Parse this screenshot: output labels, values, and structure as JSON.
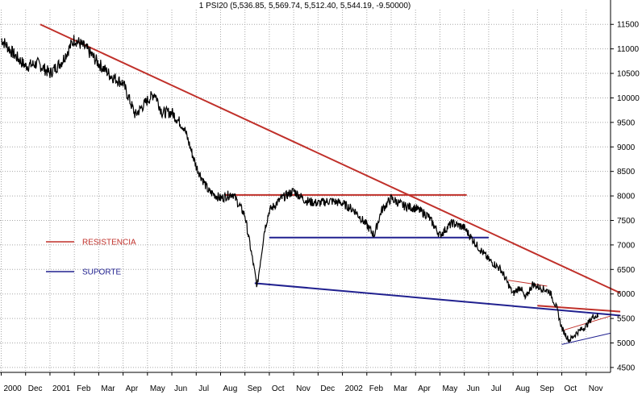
{
  "chart_data": {
    "type": "line",
    "title": "1 PSI20 (5,536.85, 5,569.74, 5,512.40, 5,544.19, -9.50000)",
    "ylim": [
      4400,
      11800
    ],
    "y_ticks": [
      4500,
      5000,
      5500,
      6000,
      6500,
      7000,
      7500,
      8000,
      8500,
      9000,
      9500,
      10000,
      10500,
      11000,
      11500
    ],
    "x_tick_labels": [
      "2000",
      "Dec",
      "2001",
      "Feb",
      "Mar",
      "Apr",
      "May",
      "Jun",
      "Jul",
      "Aug",
      "Sep",
      "Oct",
      "Nov",
      "Dec",
      "2002",
      "Feb",
      "Mar",
      "Apr",
      "May",
      "Jun",
      "Jul",
      "Aug",
      "Sep",
      "Oct",
      "Nov"
    ],
    "grid": true,
    "colors": {
      "price": "#000000",
      "resistance": "#c0302a",
      "support": "#20208f",
      "background": "#ffffff",
      "grid": "#a8a8a8"
    },
    "legend": {
      "placement": "left-middle",
      "items": [
        {
          "name": "RESISTENCIA",
          "color": "#c0302a"
        },
        {
          "name": "SUPORTE",
          "color": "#20208f"
        }
      ]
    },
    "series": [
      {
        "values": [
          [
            0,
            11200
          ],
          [
            0.5,
            10900
          ],
          [
            1,
            10650
          ],
          [
            1.5,
            10700
          ],
          [
            2,
            10500
          ],
          [
            2.5,
            10750
          ],
          [
            3,
            11200
          ],
          [
            3.5,
            11000
          ],
          [
            4,
            10700
          ],
          [
            4.5,
            10450
          ],
          [
            5,
            10300
          ],
          [
            5.5,
            9650
          ],
          [
            6,
            9950
          ],
          [
            6.3,
            10100
          ],
          [
            6.6,
            9700
          ],
          [
            7,
            9700
          ],
          [
            7.5,
            9400
          ],
          [
            8,
            8600
          ],
          [
            8.5,
            8100
          ],
          [
            9,
            7950
          ],
          [
            9.5,
            8050
          ],
          [
            10,
            7600
          ],
          [
            10.5,
            6150
          ],
          [
            10.8,
            7300
          ],
          [
            11,
            7700
          ],
          [
            11.5,
            7950
          ],
          [
            12,
            8100
          ],
          [
            12.5,
            7900
          ],
          [
            13,
            7850
          ],
          [
            13.5,
            7900
          ],
          [
            14,
            7850
          ],
          [
            14.5,
            7700
          ],
          [
            15,
            7400
          ],
          [
            15.3,
            7200
          ],
          [
            15.6,
            7700
          ],
          [
            16,
            7950
          ],
          [
            16.5,
            7800
          ],
          [
            17,
            7750
          ],
          [
            17.5,
            7600
          ],
          [
            18,
            7200
          ],
          [
            18.5,
            7450
          ],
          [
            19,
            7350
          ],
          [
            19.5,
            7000
          ],
          [
            20,
            6700
          ],
          [
            20.5,
            6500
          ],
          [
            21,
            6000
          ],
          [
            21.3,
            6150
          ],
          [
            21.5,
            5900
          ],
          [
            21.8,
            6200
          ],
          [
            22,
            6150
          ],
          [
            22.5,
            6050
          ],
          [
            22.8,
            5700
          ],
          [
            23,
            5300
          ],
          [
            23.3,
            5050
          ],
          [
            23.6,
            5200
          ],
          [
            24,
            5350
          ],
          [
            24.3,
            5550
          ],
          [
            24.5,
            5550
          ]
        ]
      }
    ],
    "trendlines": [
      {
        "series": "RESISTENCIA",
        "role": "main resistance",
        "from": [
          1.6,
          11500
        ],
        "to": [
          25.4,
          6020
        ]
      },
      {
        "series": "RESISTENCIA",
        "role": "range top",
        "from": [
          9.2,
          8020
        ],
        "to": [
          19.1,
          8020
        ]
      },
      {
        "series": "RESISTENCIA",
        "role": "lower resistance",
        "from": [
          22.0,
          5760
        ],
        "to": [
          25.4,
          5640
        ]
      },
      {
        "series": "RESISTENCIA",
        "role": "short flag",
        "from": [
          20.8,
          6280
        ],
        "to": [
          22.4,
          6160
        ]
      },
      {
        "series": "RESISTENCIA",
        "role": "channel top",
        "from": [
          23.0,
          5250
        ],
        "to": [
          25.0,
          5550
        ]
      },
      {
        "series": "SUPORTE",
        "role": "range bottom",
        "from": [
          11.0,
          7150
        ],
        "to": [
          20.0,
          7150
        ]
      },
      {
        "series": "SUPORTE",
        "role": "main support",
        "from": [
          10.4,
          6220
        ],
        "to": [
          25.4,
          5560
        ]
      },
      {
        "series": "SUPORTE",
        "role": "channel bottom",
        "from": [
          23.0,
          4970
        ],
        "to": [
          25.0,
          5200
        ]
      }
    ]
  }
}
